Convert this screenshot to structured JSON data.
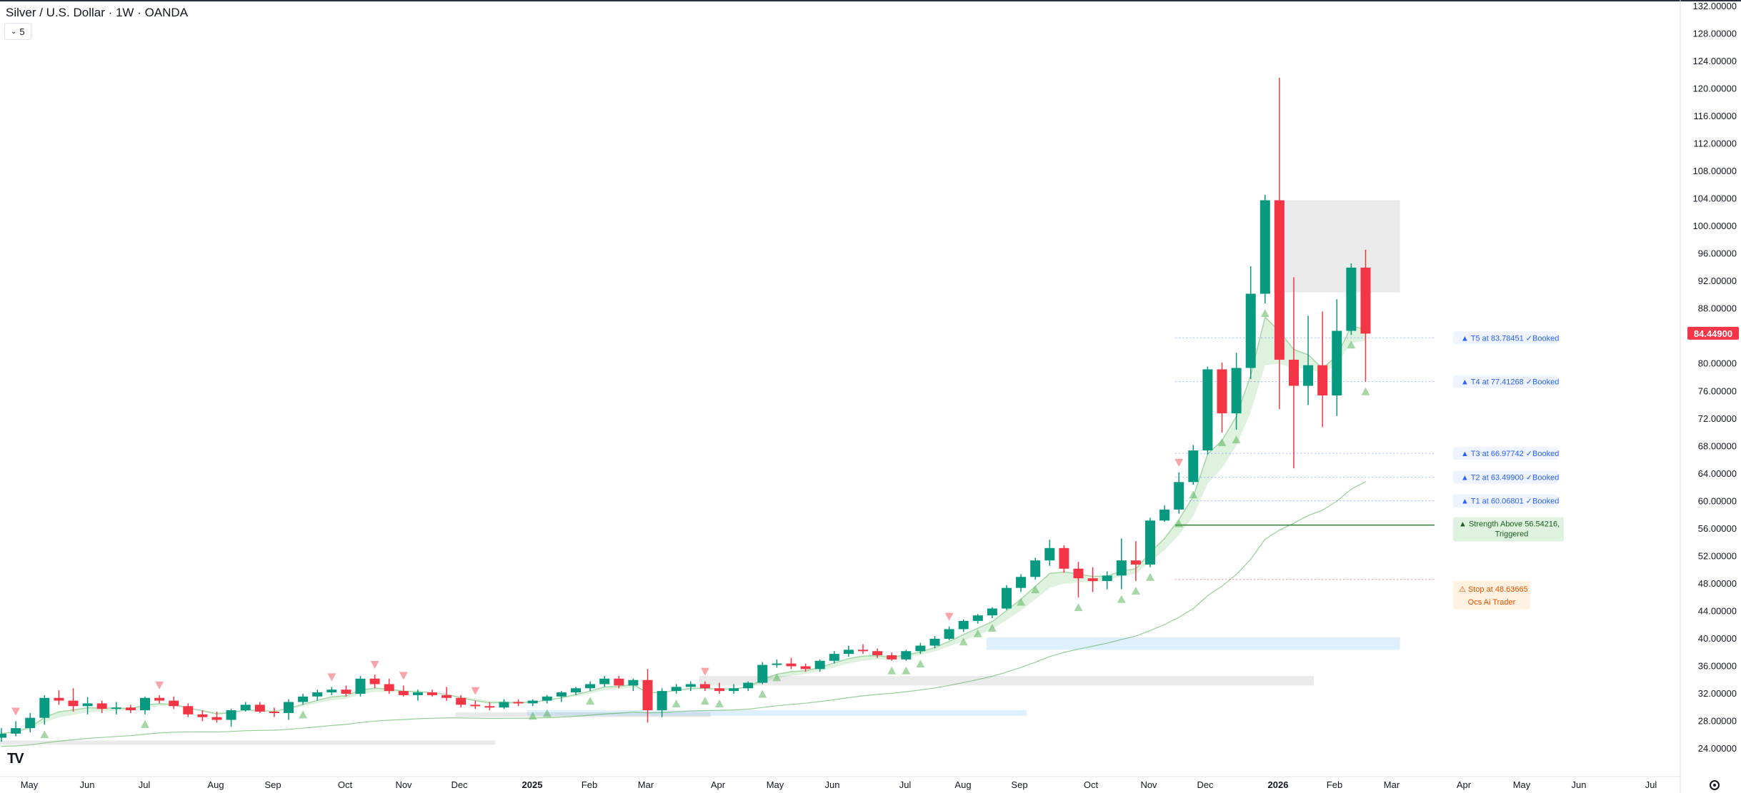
{
  "header": {
    "title": "Silver / U.S. Dollar · 1W · OANDA",
    "indicator_count": "5"
  },
  "icons": {
    "logo": "tradingview-logo-icon",
    "settings": "gear-icon",
    "toggle": "chevron-down-icon"
  },
  "colors": {
    "up": "#089981",
    "down": "#f23645",
    "target": "#2962ff",
    "strength": "#2e7d32",
    "stop": "#f23645"
  },
  "chart_data": {
    "type": "candlestick",
    "y_axis": {
      "min": 24,
      "max": 132,
      "position": "right",
      "ticks": [
        "132.00000",
        "128.00000",
        "124.00000",
        "120.00000",
        "116.00000",
        "112.00000",
        "108.00000",
        "104.00000",
        "100.00000",
        "96.00000",
        "92.00000",
        "88.00000",
        "84.00000",
        "80.00000",
        "76.00000",
        "72.00000",
        "68.00000",
        "64.00000",
        "60.00000",
        "56.00000",
        "52.00000",
        "48.00000",
        "44.00000",
        "40.00000",
        "36.00000",
        "32.00000",
        "28.00000",
        "24.00000"
      ]
    },
    "x_axis": {
      "labels": [
        "May",
        "Jun",
        "Jul",
        "Aug",
        "Sep",
        "Oct",
        "Nov",
        "Dec",
        "2025",
        "Feb",
        "Mar",
        "Apr",
        "May",
        "Jun",
        "Jul",
        "Aug",
        "Sep",
        "Oct",
        "Nov",
        "Dec",
        "2026",
        "Feb",
        "Mar",
        "Apr",
        "May",
        "Jun",
        "Jul"
      ],
      "bold_labels": [
        "2025",
        "2026"
      ]
    },
    "last_price": "84.44900",
    "candles": [
      [
        25.6,
        27.0,
        25.0,
        26.2
      ],
      [
        26.2,
        28.0,
        25.8,
        27.0
      ],
      [
        27.0,
        29.2,
        26.4,
        28.5
      ],
      [
        28.5,
        31.8,
        27.5,
        31.4
      ],
      [
        31.4,
        32.5,
        30.4,
        31.0
      ],
      [
        31.0,
        32.8,
        29.4,
        30.2
      ],
      [
        30.2,
        31.5,
        29.0,
        30.6
      ],
      [
        30.6,
        31.0,
        29.2,
        29.8
      ],
      [
        29.8,
        30.8,
        29.0,
        30.0
      ],
      [
        30.0,
        30.4,
        29.2,
        29.6
      ],
      [
        29.6,
        31.6,
        29.0,
        31.4
      ],
      [
        31.4,
        31.8,
        30.6,
        31.0
      ],
      [
        31.0,
        31.6,
        29.8,
        30.2
      ],
      [
        30.2,
        30.6,
        28.6,
        29.0
      ],
      [
        29.0,
        29.6,
        28.0,
        28.6
      ],
      [
        28.6,
        29.4,
        27.8,
        28.2
      ],
      [
        28.2,
        29.8,
        27.2,
        29.6
      ],
      [
        29.6,
        30.8,
        29.4,
        30.4
      ],
      [
        30.4,
        30.8,
        29.2,
        29.4
      ],
      [
        29.4,
        30.0,
        28.6,
        29.2
      ],
      [
        29.2,
        31.2,
        28.2,
        30.8
      ],
      [
        30.8,
        32.0,
        30.4,
        31.6
      ],
      [
        31.6,
        32.6,
        31.0,
        32.2
      ],
      [
        32.2,
        33.0,
        31.8,
        32.6
      ],
      [
        32.6,
        33.2,
        31.6,
        32.0
      ],
      [
        32.0,
        34.6,
        31.6,
        34.2
      ],
      [
        34.2,
        34.8,
        32.8,
        33.4
      ],
      [
        33.4,
        34.2,
        32.0,
        32.4
      ],
      [
        32.4,
        33.2,
        31.6,
        31.8
      ],
      [
        31.8,
        32.6,
        31.0,
        32.2
      ],
      [
        32.2,
        32.6,
        31.6,
        31.8
      ],
      [
        31.8,
        33.0,
        31.0,
        31.4
      ],
      [
        31.4,
        31.8,
        30.0,
        30.4
      ],
      [
        30.4,
        31.0,
        29.8,
        30.2
      ],
      [
        30.2,
        30.8,
        29.6,
        30.0
      ],
      [
        30.0,
        31.2,
        29.8,
        30.8
      ],
      [
        30.8,
        31.2,
        30.2,
        30.6
      ],
      [
        30.6,
        31.2,
        30.2,
        31.0
      ],
      [
        31.0,
        31.8,
        30.6,
        31.6
      ],
      [
        31.6,
        32.4,
        30.8,
        32.2
      ],
      [
        32.2,
        33.0,
        31.8,
        32.8
      ],
      [
        32.8,
        33.8,
        32.4,
        33.4
      ],
      [
        33.4,
        34.6,
        33.0,
        34.2
      ],
      [
        34.2,
        34.6,
        32.8,
        33.2
      ],
      [
        33.2,
        34.2,
        32.4,
        34.0
      ],
      [
        34.0,
        35.6,
        27.8,
        29.6
      ],
      [
        29.6,
        32.8,
        28.6,
        32.4
      ],
      [
        32.4,
        33.4,
        32.0,
        33.0
      ],
      [
        33.0,
        33.8,
        32.4,
        33.4
      ],
      [
        33.4,
        33.8,
        32.4,
        32.8
      ],
      [
        32.8,
        33.6,
        32.0,
        32.4
      ],
      [
        32.4,
        33.4,
        32.0,
        32.8
      ],
      [
        32.8,
        33.8,
        32.4,
        33.6
      ],
      [
        33.6,
        36.6,
        33.4,
        36.2
      ],
      [
        36.2,
        37.0,
        35.8,
        36.4
      ],
      [
        36.4,
        37.2,
        35.6,
        36.0
      ],
      [
        36.0,
        36.4,
        35.2,
        35.6
      ],
      [
        35.6,
        37.0,
        35.2,
        36.8
      ],
      [
        36.8,
        38.2,
        36.4,
        37.8
      ],
      [
        37.8,
        39.0,
        37.4,
        38.4
      ],
      [
        38.4,
        39.2,
        37.8,
        38.2
      ],
      [
        38.2,
        38.6,
        37.2,
        37.6
      ],
      [
        37.6,
        38.0,
        36.8,
        37.0
      ],
      [
        37.0,
        38.4,
        36.8,
        38.2
      ],
      [
        38.2,
        39.4,
        37.8,
        39.0
      ],
      [
        39.0,
        40.4,
        38.6,
        40.0
      ],
      [
        40.0,
        41.8,
        39.8,
        41.4
      ],
      [
        41.4,
        42.8,
        41.0,
        42.6
      ],
      [
        42.6,
        43.6,
        42.2,
        43.4
      ],
      [
        43.4,
        44.6,
        43.0,
        44.4
      ],
      [
        44.4,
        47.8,
        44.2,
        47.4
      ],
      [
        47.4,
        49.4,
        46.8,
        49.0
      ],
      [
        49.0,
        51.8,
        48.6,
        51.4
      ],
      [
        51.4,
        54.4,
        50.6,
        53.2
      ],
      [
        53.2,
        53.6,
        49.6,
        50.2
      ],
      [
        50.2,
        51.2,
        46.0,
        48.8
      ],
      [
        48.8,
        50.4,
        46.8,
        48.4
      ],
      [
        48.4,
        49.8,
        47.2,
        49.2
      ],
      [
        49.2,
        54.6,
        47.2,
        51.4
      ],
      [
        51.4,
        54.2,
        48.4,
        50.8
      ],
      [
        50.8,
        57.6,
        50.4,
        57.2
      ],
      [
        57.2,
        59.4,
        57.0,
        58.8
      ],
      [
        58.8,
        64.2,
        58.2,
        62.8
      ],
      [
        62.8,
        68.2,
        62.4,
        67.4
      ],
      [
        67.4,
        79.6,
        66.8,
        79.2
      ],
      [
        79.2,
        80.2,
        70.0,
        72.8
      ],
      [
        72.8,
        81.6,
        70.4,
        79.4
      ],
      [
        79.4,
        94.2,
        77.8,
        90.2
      ],
      [
        90.2,
        104.6,
        88.8,
        103.8
      ],
      [
        103.8,
        121.6,
        73.4,
        80.6
      ],
      [
        80.6,
        92.6,
        64.8,
        76.8
      ],
      [
        76.8,
        87.0,
        74.0,
        79.8
      ],
      [
        79.8,
        87.6,
        70.8,
        75.4
      ],
      [
        75.4,
        89.4,
        72.4,
        84.8
      ],
      [
        84.8,
        94.6,
        84.2,
        94.0
      ],
      [
        94.0,
        96.6,
        77.4,
        84.4
      ]
    ],
    "levels": [
      {
        "key": "t5",
        "value": 83.78451,
        "text": "▲ T5 at 83.78451 ✓Booked"
      },
      {
        "key": "t4",
        "value": 77.41268,
        "text": "▲ T4 at 77.41268 ✓Booked"
      },
      {
        "key": "t3",
        "value": 66.97742,
        "text": "▲ T3 at 66.97742 ✓Booked"
      },
      {
        "key": "t2",
        "value": 63.499,
        "text": "▲ T2 at 63.49900 ✓Booked"
      },
      {
        "key": "t1",
        "value": 60.06801,
        "text": "▲ T1 at 60.06801 ✓Booked"
      }
    ],
    "strength": {
      "value": 56.54216,
      "line1": "▲ Strength Above 56.54216,",
      "line2": "Triggered"
    },
    "stop": {
      "value": 48.63665,
      "line1": "⚠ Stop at 48.63665",
      "line2": "Ocs Ai Trader"
    },
    "zones": [
      {
        "from": 0,
        "to": 34,
        "low": 24.6,
        "high": 25.2,
        "kind": "gray"
      },
      {
        "from": 32,
        "to": 49,
        "low": 28.6,
        "high": 29.3,
        "kind": "gray"
      },
      {
        "from": 37,
        "to": 71,
        "low": 28.8,
        "high": 29.6,
        "kind": "blue"
      },
      {
        "from": 49,
        "to": 91,
        "low": 33.2,
        "high": 34.6,
        "kind": "gray"
      },
      {
        "from": 69,
        "to": 97,
        "low": 38.4,
        "high": 40.2,
        "kind": "blue"
      },
      {
        "from": 89,
        "to": 97,
        "low": 90.4,
        "high": 103.8,
        "kind": "gray"
      }
    ],
    "signals_buy": [
      3,
      10,
      21,
      37,
      38,
      41,
      47,
      49,
      50,
      53,
      54,
      62,
      63,
      64,
      67,
      68,
      69,
      71,
      72,
      75,
      78,
      79,
      80,
      82,
      83,
      85,
      86,
      88,
      94,
      95
    ],
    "signals_sell": [
      1,
      11,
      23,
      26,
      28,
      33,
      49,
      66,
      82
    ]
  }
}
